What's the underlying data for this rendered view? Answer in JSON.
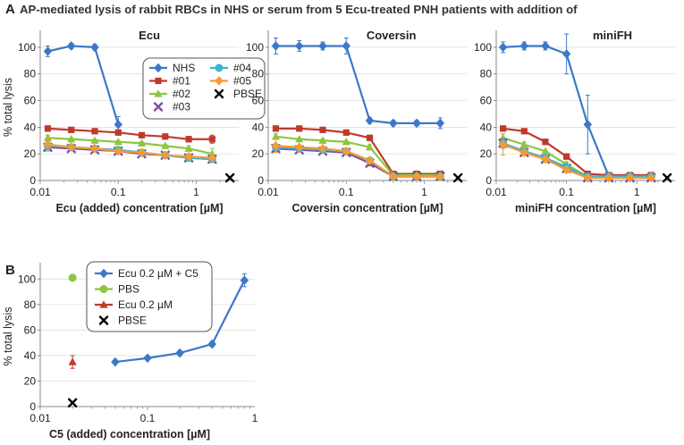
{
  "figure": {
    "main_title": "AP-mediated lysis of rabbit RBCs in NHS or serum from 5 Ecu-treated PNH patients with addition of",
    "panel_a_label": "A",
    "panel_b_label": "B"
  },
  "colors": {
    "NHS": "#3C78C8",
    "#01": "#C0392B",
    "#02": "#8DC63F",
    "#03": "#7B4FA0",
    "#04": "#3CB4D0",
    "#05": "#F39C34",
    "PBSE": "#000000",
    "PBS": "#8DC63F",
    "axis": "#888888",
    "grid": "#d9d9d9",
    "text": "#222222"
  },
  "chart_data": [
    {
      "id": "ecu",
      "type": "line",
      "title": "Ecu",
      "xlabel": "Ecu (added) concentration [µM]",
      "ylabel": "% total lysis",
      "xscale": "log",
      "xlim": [
        0.01,
        3.5
      ],
      "ylim": [
        0,
        110
      ],
      "x_ticks": [
        0.01,
        0.1,
        1
      ],
      "x_tick_labels": [
        "0.01",
        "0.1",
        "1"
      ],
      "y_ticks": [
        0,
        20,
        40,
        60,
        80,
        100
      ],
      "legend_position": "center-right",
      "legend": [
        {
          "label": "NHS",
          "series": "NHS",
          "marker": "diamond"
        },
        {
          "label": "#04",
          "series": "#04",
          "marker": "circle"
        },
        {
          "label": "#01",
          "series": "#01",
          "marker": "square"
        },
        {
          "label": "#05",
          "series": "#05",
          "marker": "diamond"
        },
        {
          "label": "#02",
          "series": "#02",
          "marker": "triangle"
        },
        {
          "label": "PBSE",
          "series": "PBSE",
          "marker": "x"
        },
        {
          "label": "#03",
          "series": "#03",
          "marker": "x"
        }
      ],
      "x": [
        0.0125,
        0.025,
        0.05,
        0.1,
        0.2,
        0.4,
        0.8,
        1.6
      ],
      "series": [
        {
          "name": "NHS",
          "marker": "diamond",
          "values": [
            97,
            101,
            100,
            42,
            null,
            null,
            null,
            null
          ],
          "errors": [
            4,
            2,
            2,
            6,
            0,
            0,
            0,
            0
          ]
        },
        {
          "name": "#01",
          "marker": "square",
          "values": [
            39,
            38,
            37,
            36,
            34,
            33,
            31,
            31
          ],
          "errors": [
            2,
            1,
            1,
            1,
            1,
            1,
            2,
            3
          ]
        },
        {
          "name": "#02",
          "marker": "triangle",
          "values": [
            32,
            31,
            30,
            29,
            28,
            26,
            24,
            20
          ],
          "errors": [
            2,
            1,
            1,
            1,
            1,
            1,
            2,
            4
          ]
        },
        {
          "name": "#03",
          "marker": "x",
          "values": [
            25,
            24,
            23,
            22,
            20,
            19,
            17,
            16
          ],
          "errors": [
            2,
            1,
            1,
            1,
            1,
            1,
            1,
            2
          ]
        },
        {
          "name": "#04",
          "marker": "circle",
          "values": [
            26,
            25,
            24,
            23,
            21,
            19,
            17,
            16
          ],
          "errors": [
            3,
            1,
            1,
            1,
            1,
            1,
            1,
            2
          ]
        },
        {
          "name": "#05",
          "marker": "diamond",
          "values": [
            27,
            25,
            24,
            22,
            21,
            19,
            18,
            17
          ],
          "errors": [
            5,
            1,
            1,
            1,
            1,
            1,
            1,
            1
          ]
        }
      ],
      "extra_points": [
        {
          "name": "PBSE",
          "marker": "x",
          "x": 2.7,
          "y": 2
        }
      ]
    },
    {
      "id": "coversin",
      "type": "line",
      "title": "Coversin",
      "xlabel": "Coversin concentration [µM]",
      "ylabel": "",
      "xscale": "log",
      "xlim": [
        0.01,
        3.5
      ],
      "ylim": [
        0,
        110
      ],
      "x_ticks": [
        0.01,
        0.1,
        1
      ],
      "x_tick_labels": [
        "0.01",
        "0.1",
        "1"
      ],
      "y_ticks": [
        0,
        20,
        40,
        60,
        80,
        100
      ],
      "x": [
        0.0125,
        0.025,
        0.05,
        0.1,
        0.2,
        0.4,
        0.8,
        1.6
      ],
      "series": [
        {
          "name": "NHS",
          "marker": "diamond",
          "values": [
            101,
            101,
            101,
            101,
            45,
            43,
            43,
            43
          ],
          "errors": [
            6,
            4,
            3,
            6,
            2,
            2,
            2,
            4
          ]
        },
        {
          "name": "#01",
          "marker": "square",
          "values": [
            39,
            39,
            38,
            36,
            32,
            5,
            5,
            5
          ],
          "errors": [
            2,
            1,
            1,
            1,
            2,
            1,
            1,
            1
          ]
        },
        {
          "name": "#02",
          "marker": "triangle",
          "values": [
            33,
            31,
            30,
            29,
            25,
            4,
            4,
            4
          ],
          "errors": [
            2,
            1,
            1,
            1,
            2,
            1,
            1,
            1
          ]
        },
        {
          "name": "#03",
          "marker": "x",
          "values": [
            24,
            23,
            22,
            21,
            13,
            3,
            3,
            3
          ],
          "errors": [
            2,
            1,
            1,
            1,
            2,
            1,
            1,
            1
          ]
        },
        {
          "name": "#04",
          "marker": "circle",
          "values": [
            25,
            24,
            23,
            22,
            15,
            3,
            3,
            3
          ],
          "errors": [
            2,
            1,
            1,
            1,
            2,
            1,
            1,
            1
          ]
        },
        {
          "name": "#05",
          "marker": "diamond",
          "values": [
            26,
            25,
            24,
            22,
            15,
            3,
            3,
            3
          ],
          "errors": [
            5,
            1,
            1,
            1,
            2,
            1,
            1,
            1
          ]
        }
      ],
      "extra_points": [
        {
          "name": "PBSE",
          "marker": "x",
          "x": 2.7,
          "y": 2
        }
      ]
    },
    {
      "id": "minifh",
      "type": "line",
      "title": "miniFH",
      "xlabel": "miniFH concentration [µM]",
      "ylabel": "",
      "xscale": "log",
      "xlim": [
        0.01,
        3.5
      ],
      "ylim": [
        0,
        110
      ],
      "x_ticks": [
        0.01,
        0.1,
        1
      ],
      "x_tick_labels": [
        "0.01",
        "0.1",
        "1"
      ],
      "y_ticks": [
        0,
        20,
        40,
        60,
        80,
        100
      ],
      "x": [
        0.0125,
        0.025,
        0.05,
        0.1,
        0.2,
        0.4,
        0.8,
        1.6
      ],
      "series": [
        {
          "name": "NHS",
          "marker": "diamond",
          "values": [
            100,
            101,
            101,
            95,
            42,
            3,
            3,
            3
          ],
          "errors": [
            4,
            3,
            3,
            15,
            22,
            1,
            1,
            1
          ]
        },
        {
          "name": "#01",
          "marker": "square",
          "values": [
            39,
            37,
            29,
            18,
            5,
            4,
            4,
            4
          ],
          "errors": [
            2,
            1,
            2,
            2,
            1,
            1,
            1,
            1
          ]
        },
        {
          "name": "#02",
          "marker": "triangle",
          "values": [
            32,
            27,
            22,
            12,
            3,
            3,
            3,
            3
          ],
          "errors": [
            3,
            2,
            1,
            2,
            1,
            1,
            1,
            1
          ]
        },
        {
          "name": "#03",
          "marker": "x",
          "values": [
            28,
            21,
            16,
            9,
            2,
            2,
            2,
            2
          ],
          "errors": [
            3,
            2,
            1,
            2,
            1,
            1,
            1,
            1
          ]
        },
        {
          "name": "#04",
          "marker": "circle",
          "values": [
            28,
            22,
            17,
            10,
            3,
            3,
            3,
            3
          ],
          "errors": [
            4,
            2,
            1,
            2,
            1,
            1,
            1,
            1
          ]
        },
        {
          "name": "#05",
          "marker": "diamond",
          "values": [
            27,
            21,
            16,
            8,
            2,
            2,
            2,
            2
          ],
          "errors": [
            8,
            2,
            1,
            2,
            1,
            1,
            1,
            1
          ]
        }
      ],
      "extra_points": [
        {
          "name": "PBSE",
          "marker": "x",
          "x": 2.7,
          "y": 2
        }
      ]
    },
    {
      "id": "c5",
      "type": "line",
      "title": "",
      "xlabel": "C5 (added) concentration [µM]",
      "ylabel": "% total lysis",
      "xscale": "log",
      "xlim": [
        0.01,
        1
      ],
      "ylim": [
        0,
        110
      ],
      "x_ticks": [
        0.01,
        0.1,
        1
      ],
      "x_tick_labels": [
        "0.01",
        "0.1",
        "1"
      ],
      "y_ticks": [
        0,
        20,
        40,
        60,
        80,
        100
      ],
      "legend_position": "top-center",
      "legend": [
        {
          "label": "Ecu 0.2 µM + C5",
          "series": "NHS",
          "marker": "diamond-line"
        },
        {
          "label": "PBS",
          "series": "PBS",
          "marker": "circle"
        },
        {
          "label": "Ecu 0.2 µM",
          "series": "#01",
          "marker": "triangle"
        },
        {
          "label": "PBSE",
          "series": "PBSE",
          "marker": "x"
        }
      ],
      "x": [
        0.05,
        0.1,
        0.2,
        0.4,
        0.8
      ],
      "series": [
        {
          "name": "Ecu 0.2 µM + C5",
          "color_key": "NHS",
          "marker": "diamond",
          "values": [
            35,
            38,
            42,
            49,
            99
          ],
          "errors": [
            1,
            1,
            2,
            2,
            5
          ]
        }
      ],
      "extra_points": [
        {
          "name": "PBS",
          "color_key": "PBS",
          "marker": "circle",
          "x": 0.02,
          "y": 101,
          "error": 2
        },
        {
          "name": "Ecu 0.2 µM",
          "color_key": "#01",
          "marker": "triangle",
          "x": 0.02,
          "y": 35,
          "error": 5
        },
        {
          "name": "PBSE",
          "color_key": "PBSE",
          "marker": "x",
          "x": 0.02,
          "y": 3,
          "error": 0
        }
      ]
    }
  ]
}
